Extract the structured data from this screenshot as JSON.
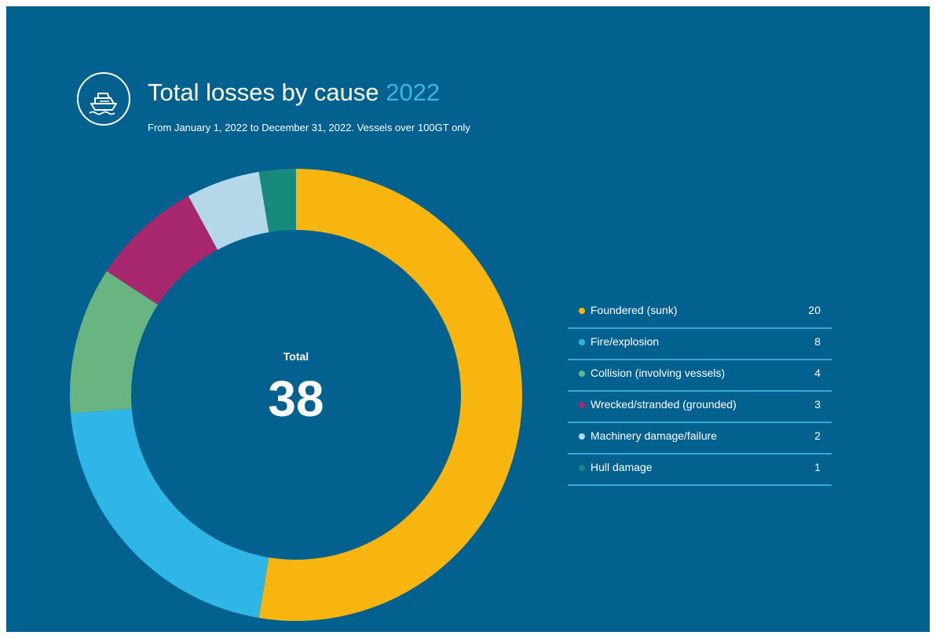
{
  "header": {
    "icon": "ship-icon",
    "title": "Total losses by cause",
    "title_year": "2022",
    "subtitle": "From January 1, 2022 to December 31, 2022. Vessels over 100GT only"
  },
  "total": {
    "label": "Total",
    "value": "38"
  },
  "colors": {
    "background": "#02618F",
    "year_accent": "#35B7E8",
    "legend_rule": "#35A9DE"
  },
  "chart_data": {
    "type": "pie",
    "style": "donut",
    "categories": [
      "Foundered (sunk)",
      "Fire/explosion",
      "Collision (involving vessels)",
      "Wrecked/stranded (grounded)",
      "Machinery damage/failure",
      "Hull damage"
    ],
    "values": [
      20,
      8,
      4,
      3,
      2,
      1
    ],
    "colors": [
      "#F8B40F",
      "#2FB6E6",
      "#68B581",
      "#A7286F",
      "#B4D8EA",
      "#17897D"
    ],
    "value_labels": [
      "20",
      "8",
      "4",
      "3",
      "2",
      "1"
    ],
    "direction": "clockwise-from-top",
    "legend_position": "right"
  }
}
